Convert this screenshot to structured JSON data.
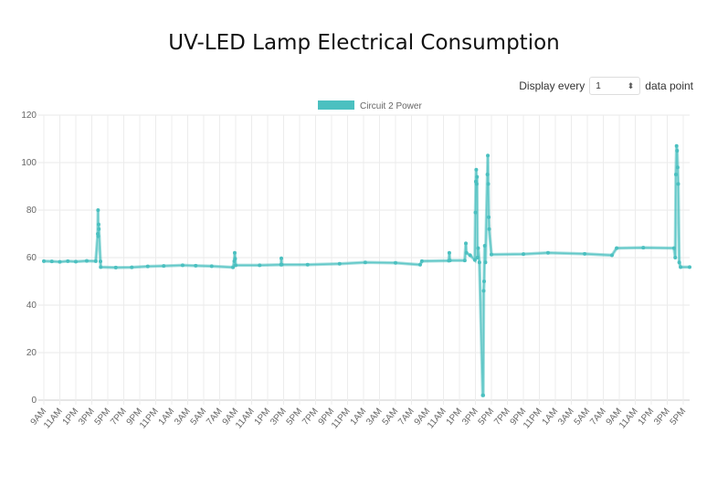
{
  "title": "UV-LED Lamp Electrical Consumption",
  "control": {
    "prefix": "Display every",
    "value": "1",
    "suffix": "data point",
    "spinner_icon": "up-down-chevron-icon"
  },
  "chart_data": {
    "type": "line",
    "title": "UV-LED Lamp Electrical Consumption",
    "xlabel": "",
    "ylabel": "",
    "ylim": [
      0,
      120
    ],
    "yticks": [
      0,
      20,
      40,
      60,
      80,
      100,
      120
    ],
    "xticks": [
      "9AM",
      "11AM",
      "1PM",
      "3PM",
      "5PM",
      "7PM",
      "9PM",
      "11PM",
      "1AM",
      "3AM",
      "5AM",
      "7AM",
      "9AM",
      "11AM",
      "1PM",
      "3PM",
      "5PM",
      "7PM",
      "9PM",
      "11PM",
      "1AM",
      "3AM",
      "5AM",
      "7AM",
      "9AM",
      "11AM",
      "1PM",
      "3PM",
      "5PM",
      "7PM",
      "9PM",
      "11PM",
      "1AM",
      "3AM",
      "5AM",
      "7AM",
      "9AM",
      "11AM",
      "1PM",
      "3PM",
      "5PM"
    ],
    "grid": true,
    "legend": "top-center",
    "color": "#4bc0c0",
    "series": [
      {
        "name": "Circuit 2 Power",
        "points": [
          [
            "1 09:00",
            58.5
          ],
          [
            "1 10:00",
            58.4
          ],
          [
            "1 11:00",
            58.2
          ],
          [
            "1 12:00",
            58.5
          ],
          [
            "1 13:00",
            58.3
          ],
          [
            "1 14:22",
            58.6
          ],
          [
            "1 15:30",
            58.5
          ],
          [
            "1 15:45",
            70
          ],
          [
            "1 15:47",
            80
          ],
          [
            "1 15:49",
            69
          ],
          [
            "1 15:51",
            74
          ],
          [
            "1 15:53",
            72
          ],
          [
            "1 16:05",
            58.4
          ],
          [
            "1 16:07",
            56
          ],
          [
            "1 18:00",
            55.8
          ],
          [
            "1 20:00",
            55.9
          ],
          [
            "1 22:00",
            56.3
          ],
          [
            "2 00:00",
            56.5
          ],
          [
            "2 02:22",
            56.8
          ],
          [
            "2 04:00",
            56.6
          ],
          [
            "2 06:00",
            56.4
          ],
          [
            "2 08:40",
            55.9
          ],
          [
            "2 08:50",
            58.5
          ],
          [
            "2 08:53",
            62
          ],
          [
            "2 08:56",
            59.5
          ],
          [
            "2 09:00",
            56.8
          ],
          [
            "2 12:00",
            56.8
          ],
          [
            "2 14:40",
            57
          ],
          [
            "2 14:43",
            59.7
          ],
          [
            "2 14:46",
            57
          ],
          [
            "2 18:00",
            57
          ],
          [
            "2 22:00",
            57.4
          ],
          [
            "3 01:13",
            58
          ],
          [
            "3 05:00",
            57.8
          ],
          [
            "3 08:05",
            57
          ],
          [
            "3 08:18",
            58.5
          ],
          [
            "3 11:40",
            58.7
          ],
          [
            "3 11:44",
            62
          ],
          [
            "3 11:48",
            58.8
          ],
          [
            "3 13:40",
            58.8
          ],
          [
            "3 13:48",
            66
          ],
          [
            "3 13:52",
            62
          ],
          [
            "3 14:20",
            61
          ],
          [
            "3 14:56",
            59
          ],
          [
            "3 15:00",
            79
          ],
          [
            "3 15:03",
            92
          ],
          [
            "3 15:06",
            97
          ],
          [
            "3 15:09",
            91
          ],
          [
            "3 15:12",
            94
          ],
          [
            "3 15:15",
            60
          ],
          [
            "3 15:20",
            64
          ],
          [
            "3 15:30",
            58
          ],
          [
            "3 15:55",
            2
          ],
          [
            "3 15:58",
            2
          ],
          [
            "3 16:02",
            46
          ],
          [
            "3 16:05",
            50
          ],
          [
            "3 16:10",
            65
          ],
          [
            "3 16:15",
            58
          ],
          [
            "3 16:30",
            95
          ],
          [
            "3 16:33",
            103
          ],
          [
            "3 16:36",
            91
          ],
          [
            "3 16:40",
            77
          ],
          [
            "3 16:43",
            72
          ],
          [
            "3 17:00",
            61.3
          ],
          [
            "3 21:00",
            61.5
          ],
          [
            "4 00:05",
            62
          ],
          [
            "4 04:40",
            61.6
          ],
          [
            "4 08:05",
            61
          ],
          [
            "4 08:40",
            64
          ],
          [
            "4 12:00",
            64.2
          ],
          [
            "4 15:51",
            64
          ],
          [
            "4 16:00",
            60
          ],
          [
            "4 16:05",
            95
          ],
          [
            "4 16:10",
            107
          ],
          [
            "4 16:14",
            105
          ],
          [
            "4 16:18",
            98
          ],
          [
            "4 16:22",
            91
          ],
          [
            "4 16:30",
            58
          ],
          [
            "4 16:40",
            56
          ],
          [
            "4 17:48",
            56
          ]
        ]
      }
    ]
  }
}
